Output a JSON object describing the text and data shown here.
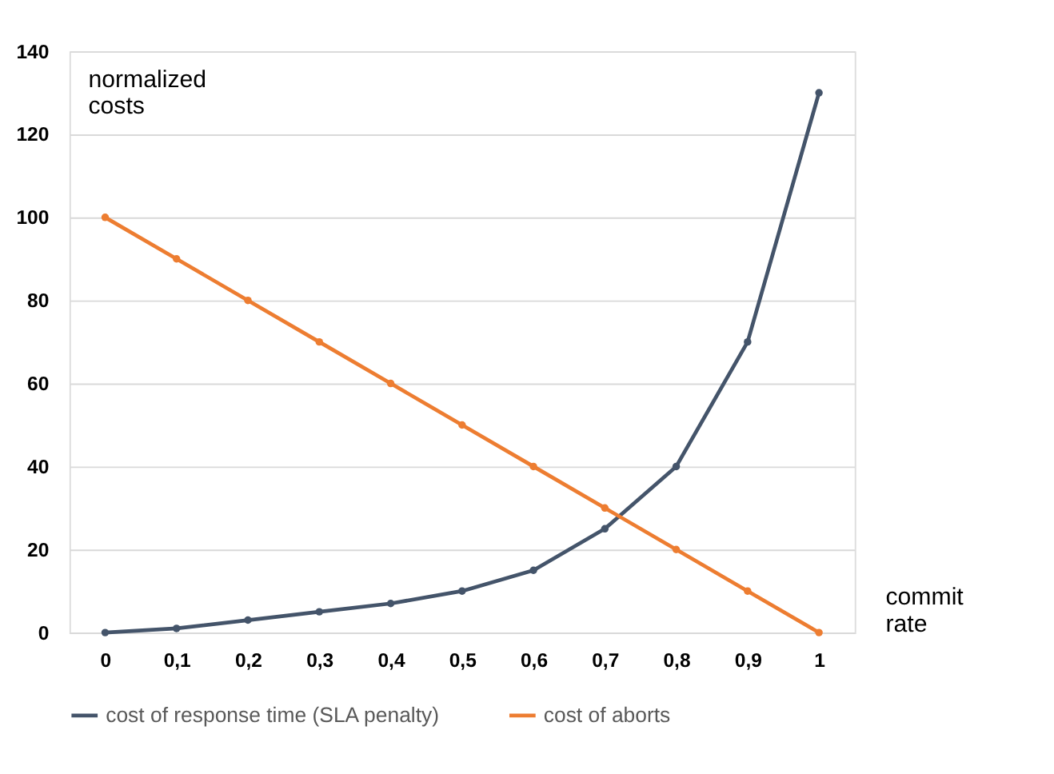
{
  "chart_data": {
    "type": "line",
    "xlabel": "commit rate",
    "ylabel": "normalized costs",
    "categories": [
      "0",
      "0,1",
      "0,2",
      "0,3",
      "0,4",
      "0,5",
      "0,6",
      "0,7",
      "0,8",
      "0,9",
      "1"
    ],
    "series": [
      {
        "name": "cost of response time (SLA penalty)",
        "color": "#44546a",
        "values": [
          0,
          1,
          3,
          5,
          7,
          10,
          15,
          25,
          40,
          70,
          130
        ]
      },
      {
        "name": "cost of aborts",
        "color": "#ed7d31",
        "values": [
          100,
          90,
          80,
          70,
          60,
          50,
          40,
          30,
          20,
          10,
          0
        ]
      }
    ],
    "ylim": [
      0,
      140
    ],
    "yticks": [
      0,
      20,
      40,
      60,
      80,
      100,
      120,
      140
    ],
    "grid": "y",
    "legend": "bottom",
    "marker": "circle",
    "line_style": "solid"
  }
}
